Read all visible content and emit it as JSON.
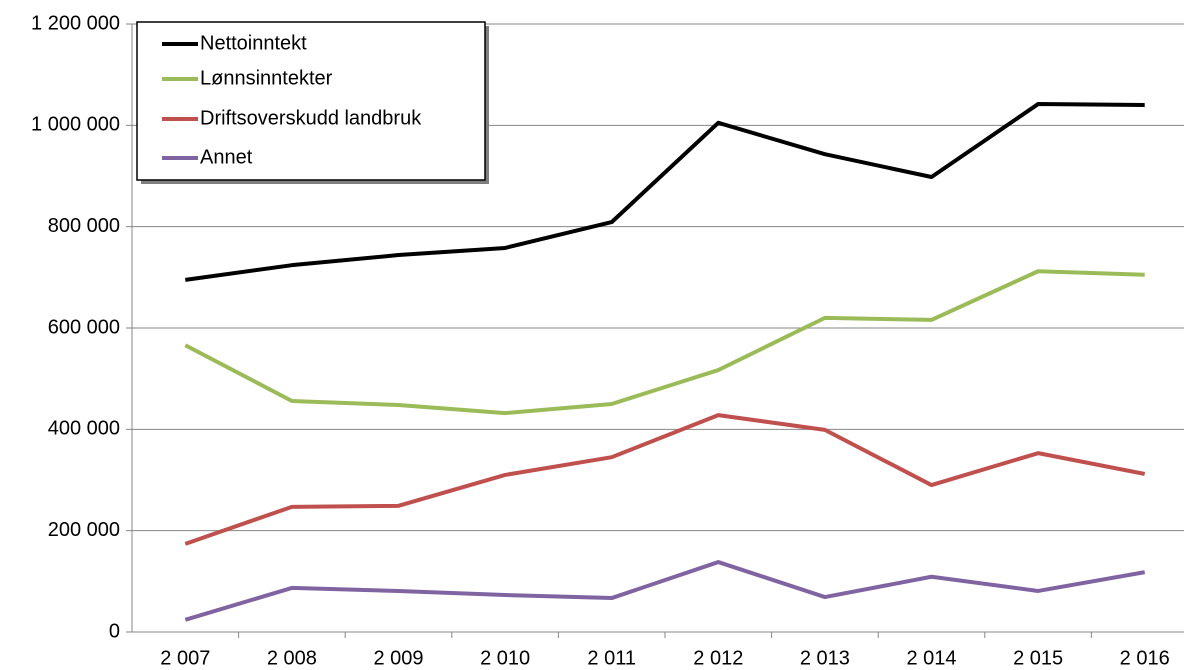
{
  "chart_data": {
    "type": "line",
    "categories": [
      "2 007",
      "2 008",
      "2 009",
      "2 010",
      "2 011",
      "2 012",
      "2 013",
      "2 014",
      "2 015",
      "2 016"
    ],
    "series": [
      {
        "name": "Nettoinntekt",
        "color": "#000000",
        "values": [
          695000,
          724000,
          744000,
          758000,
          809000,
          1005000,
          943000,
          898000,
          1042000,
          1040000
        ]
      },
      {
        "name": "Lønnsinntekter",
        "color": "#9bbb59",
        "values": [
          566000,
          456000,
          448000,
          432000,
          450000,
          517000,
          620000,
          616000,
          712000,
          705000
        ]
      },
      {
        "name": "Driftsoverskudd landbruk",
        "color": "#c0504d",
        "values": [
          174000,
          247000,
          249000,
          310000,
          345000,
          428000,
          399000,
          290000,
          353000,
          312000
        ]
      },
      {
        "name": "Annet",
        "color": "#8064a2",
        "values": [
          24000,
          87000,
          81000,
          73000,
          67000,
          138000,
          69000,
          109000,
          81000,
          118000
        ]
      }
    ],
    "ylim": [
      0,
      1200000
    ],
    "yticks": [
      0,
      {
        "value": 200000,
        "label": "200 000"
      },
      {
        "value": 400000,
        "label": "400 000"
      },
      {
        "value": 600000,
        "label": "600 000"
      },
      {
        "value": 800000,
        "label": "800 000"
      },
      {
        "value": 1000000,
        "label": "1 000 000"
      },
      {
        "value": 1200000,
        "label": "1 200 000"
      }
    ],
    "grid": true,
    "legend": "upper left"
  }
}
